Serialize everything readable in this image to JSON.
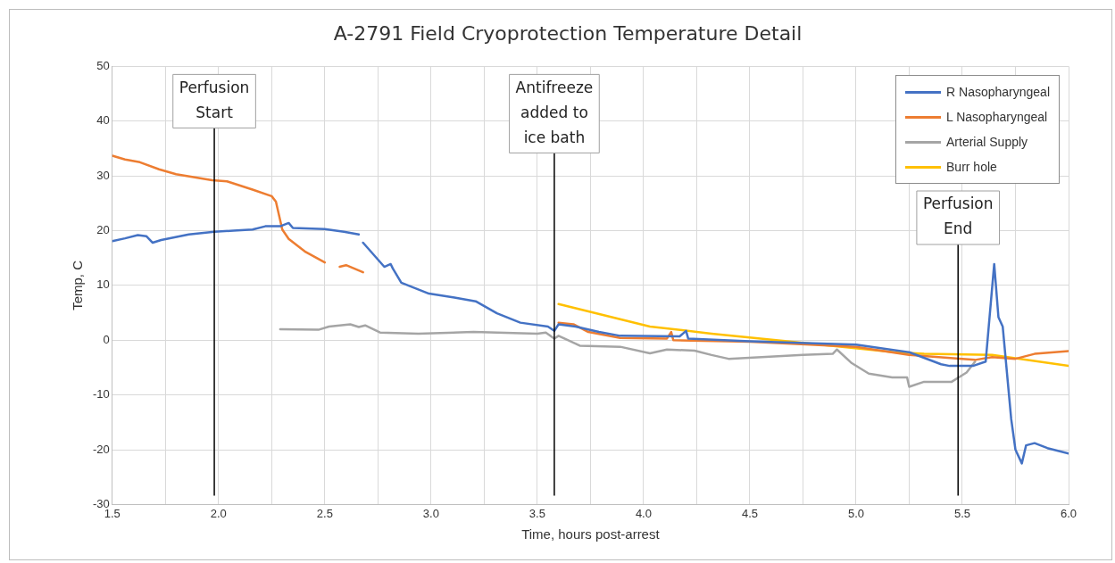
{
  "chart_data": {
    "type": "line",
    "title": "A-2791 Field Cryoprotection Temperature Detail",
    "xlabel": "Time, hours post-arrest",
    "ylabel": "Temp, C",
    "xlim": [
      1.5,
      6.0
    ],
    "ylim": [
      -30,
      50
    ],
    "xticks": [
      {
        "value": 1.5,
        "label": "1.5"
      },
      {
        "value": 1.75,
        "label": null
      },
      {
        "value": 2.0,
        "label": "2.0"
      },
      {
        "value": 2.25,
        "label": null
      },
      {
        "value": 2.5,
        "label": "2.5"
      },
      {
        "value": 2.75,
        "label": null
      },
      {
        "value": 3.0,
        "label": "3.0"
      },
      {
        "value": 3.25,
        "label": null
      },
      {
        "value": 3.5,
        "label": "3.5"
      },
      {
        "value": 3.75,
        "label": null
      },
      {
        "value": 4.0,
        "label": "4.0"
      },
      {
        "value": 4.25,
        "label": null
      },
      {
        "value": 4.5,
        "label": "4.5"
      },
      {
        "value": 4.75,
        "label": null
      },
      {
        "value": 5.0,
        "label": "5.0"
      },
      {
        "value": 5.25,
        "label": null
      },
      {
        "value": 5.5,
        "label": "5.5"
      },
      {
        "value": 5.75,
        "label": null
      },
      {
        "value": 6.0,
        "label": "6.0"
      }
    ],
    "yticks": [
      -30,
      -20,
      -10,
      0,
      10,
      20,
      30,
      40,
      50
    ],
    "grid": true,
    "legend": "top right",
    "marker": "none",
    "line_style": "solid",
    "series": [
      {
        "name": "R Nasopharyngeal",
        "color": "#4472c4",
        "x": [
          1.5,
          1.56,
          1.62,
          1.66,
          1.69,
          1.73,
          1.86,
          1.98,
          2.07,
          2.16,
          2.22,
          2.29,
          2.33,
          2.35,
          2.5,
          2.59,
          2.66,
          2.665,
          2.68,
          2.78,
          2.81,
          2.82,
          2.86,
          2.99,
          3.11,
          3.21,
          3.31,
          3.42,
          3.55,
          3.58,
          3.6,
          3.68,
          3.79,
          3.89,
          4.17,
          4.2,
          4.21,
          4.5,
          5.0,
          5.25,
          5.4,
          5.44,
          5.55,
          5.61,
          5.65,
          5.67,
          5.69,
          5.73,
          5.75,
          5.78,
          5.8,
          5.84,
          5.9,
          6.0
        ],
        "values": [
          18.1,
          18.6,
          19.2,
          19.0,
          17.8,
          18.3,
          19.3,
          19.8,
          20.0,
          20.2,
          20.8,
          20.8,
          21.4,
          20.5,
          20.3,
          19.8,
          19.3,
          null,
          17.8,
          13.4,
          13.9,
          13.1,
          10.5,
          8.5,
          7.8,
          7.1,
          4.9,
          3.2,
          2.5,
          1.7,
          2.9,
          2.5,
          1.5,
          0.8,
          0.7,
          1.7,
          0.3,
          -0.2,
          -0.8,
          -2.2,
          -4.4,
          -4.7,
          -4.7,
          -3.9,
          13.9,
          4.2,
          2.5,
          -14.4,
          -20,
          -22.5,
          -19.2,
          -18.8,
          -19.7,
          -20.7
        ]
      },
      {
        "name": "L Nasopharyngeal",
        "color": "#ed7d31",
        "x": [
          1.5,
          1.56,
          1.63,
          1.72,
          1.8,
          1.97,
          2.04,
          2.16,
          2.25,
          2.27,
          2.3,
          2.33,
          2.41,
          2.5,
          2.54,
          2.57,
          2.6,
          2.68,
          3.0,
          3.6,
          3.67,
          3.74,
          3.89,
          4.11,
          4.13,
          4.14,
          4.5,
          5.0,
          5.25,
          5.5,
          5.56,
          5.64,
          5.75,
          5.84,
          6.0
        ],
        "values": [
          33.7,
          33.0,
          32.5,
          31.2,
          30.3,
          29.2,
          29.0,
          27.5,
          26.3,
          25.3,
          20.2,
          18.5,
          16.1,
          14.2,
          null,
          13.4,
          13.7,
          12.4,
          null,
          3.2,
          2.9,
          1.5,
          0.4,
          0.3,
          1.5,
          0.0,
          -0.3,
          -1.2,
          -2.7,
          -3.4,
          -3.6,
          -3.1,
          -3.4,
          -2.5,
          -2.0
        ]
      },
      {
        "name": "Arterial Supply",
        "color": "#a5a5a5",
        "x": [
          2.29,
          2.47,
          2.52,
          2.62,
          2.66,
          2.69,
          2.76,
          2.94,
          3.2,
          3.5,
          3.54,
          3.58,
          3.6,
          3.7,
          3.89,
          4.03,
          4.11,
          4.24,
          4.32,
          4.4,
          4.75,
          4.89,
          4.91,
          4.98,
          5.06,
          5.17,
          5.24,
          5.25,
          5.32,
          5.45,
          5.52,
          5.56
        ],
        "values": [
          2.0,
          1.9,
          2.5,
          2.9,
          2.4,
          2.7,
          1.4,
          1.2,
          1.5,
          1.2,
          1.4,
          0.3,
          0.8,
          -1.0,
          -1.2,
          -2.4,
          -1.7,
          -1.9,
          -2.7,
          -3.4,
          -2.7,
          -2.5,
          -1.7,
          -4.2,
          -6.1,
          -6.8,
          -6.8,
          -8.5,
          -7.6,
          -7.6,
          -5.9,
          -3.9
        ]
      },
      {
        "name": "Burr hole",
        "color": "#ffc000",
        "x": [
          3.6,
          4.03,
          4.32,
          4.75,
          5.18,
          5.32,
          5.64,
          6.0
        ],
        "values": [
          6.6,
          2.5,
          1.2,
          -0.5,
          -2.2,
          -2.5,
          -2.7,
          -4.7
        ]
      }
    ],
    "ref_lines": [
      {
        "axis": "x",
        "value": 1.98,
        "label": "Perfusion Start",
        "color": "#000000"
      },
      {
        "axis": "x",
        "value": 3.58,
        "label": "Antifreeze added to ice bath",
        "color": "#000000"
      },
      {
        "axis": "x",
        "value": 5.48,
        "label": "Perfusion End",
        "color": "#000000"
      }
    ]
  }
}
